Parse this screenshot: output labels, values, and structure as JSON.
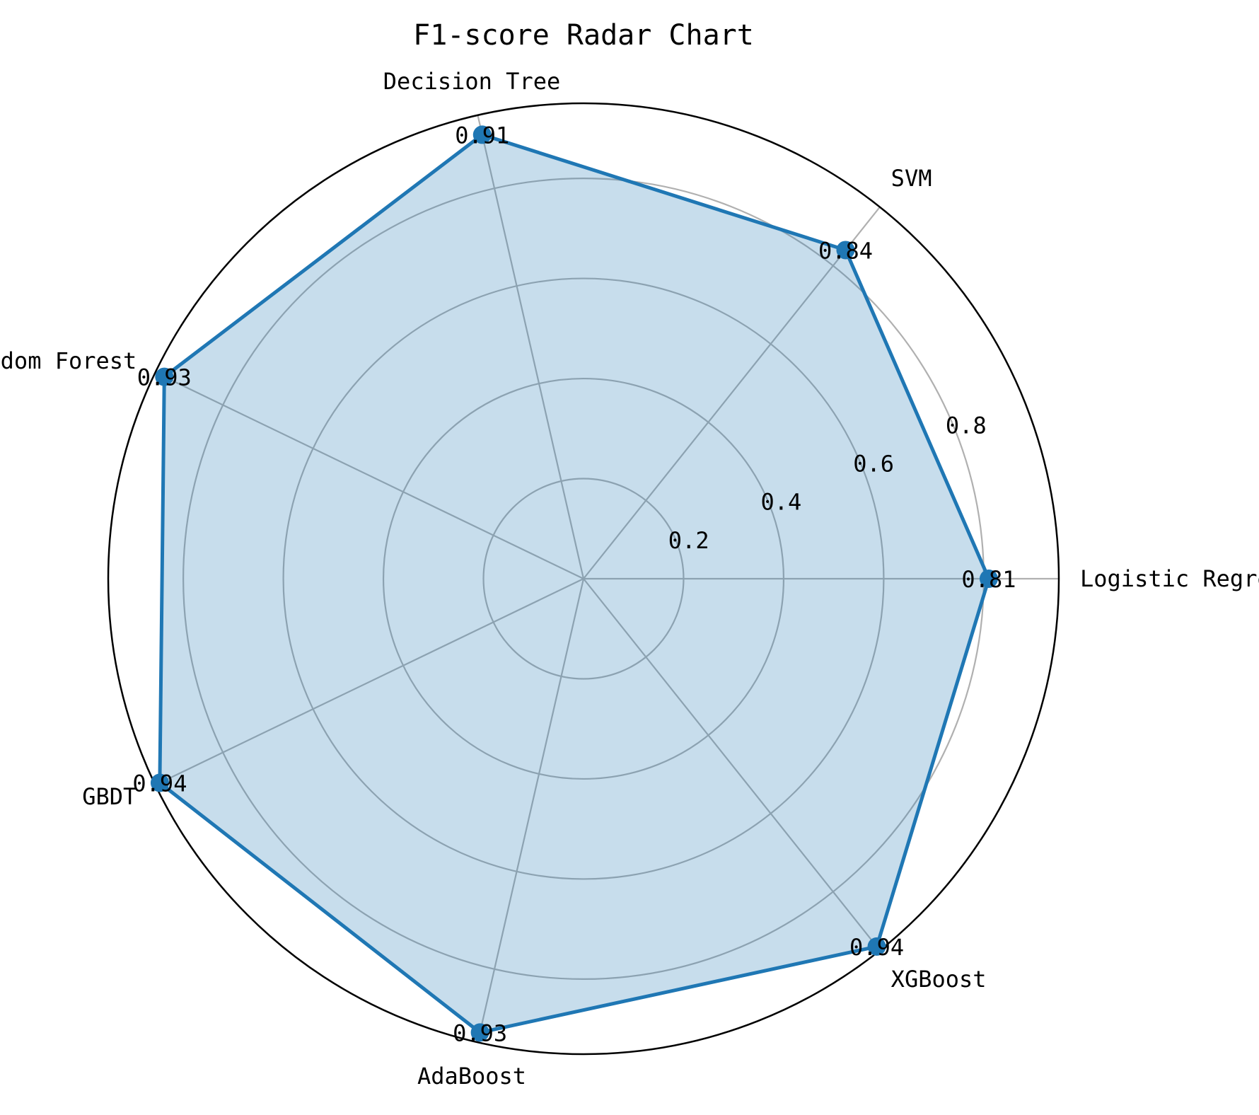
{
  "chart_data": {
    "type": "radar",
    "title": "F1-score Radar Chart",
    "categories": [
      "Logistic Regression",
      "SVM",
      "Decision Tree",
      "Random Forest",
      "GBDT",
      "AdaBoost",
      "XGBoost"
    ],
    "series": [
      {
        "name": "F1-score",
        "values": [
          0.81,
          0.84,
          0.91,
          0.93,
          0.94,
          0.93,
          0.94
        ],
        "value_labels": [
          "0.81",
          "0.84",
          "0.91",
          "0.93",
          "0.94",
          "0.93",
          "0.94"
        ]
      }
    ],
    "rlim": [
      0,
      0.95
    ],
    "r_ticks": [
      0.2,
      0.4,
      0.6,
      0.8
    ],
    "r_tick_labels": [
      "0.2",
      "0.4",
      "0.6",
      "0.8"
    ],
    "grid": true,
    "colors": {
      "line": "#1f77b4",
      "fill": "#1f77b4",
      "grid": "#b0b0b0",
      "frame": "#000000",
      "text": "#000000"
    }
  }
}
